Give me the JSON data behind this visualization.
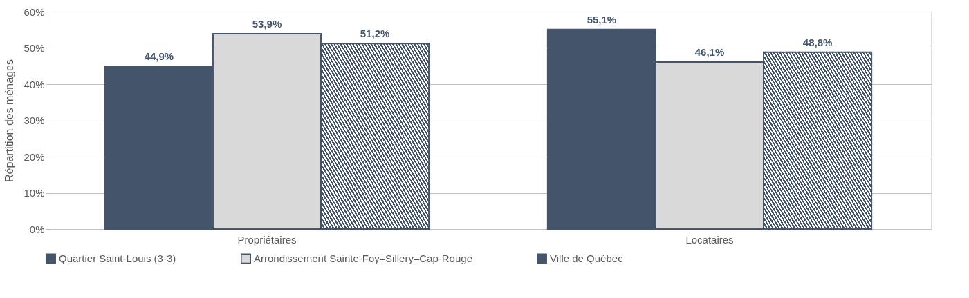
{
  "chart_data": {
    "type": "bar",
    "ylabel": "Répartition des ménages",
    "categories": [
      "Propriétaires",
      "Locataires"
    ],
    "series": [
      {
        "name": "Quartier Saint-Louis (3-3)",
        "color": "#44546a",
        "values": [
          44.9,
          55.1
        ],
        "value_labels": [
          "44,9%",
          "55,1%"
        ]
      },
      {
        "name": "Arrondissement Sainte-Foy–Sillery–Cap-Rouge",
        "color": "#d9d9d9",
        "values": [
          53.9,
          46.1
        ],
        "value_labels": [
          "53,9%",
          "46,1%"
        ]
      },
      {
        "name": "Ville de Québec",
        "color": "#44546a",
        "values": [
          51.2,
          48.8
        ],
        "value_labels": [
          "51,2%",
          "48,8%"
        ]
      }
    ],
    "ylim": [
      0,
      60
    ],
    "yticks": [
      {
        "value": 0,
        "label": "0%"
      },
      {
        "value": 10,
        "label": "10%"
      },
      {
        "value": 20,
        "label": "20%"
      },
      {
        "value": 30,
        "label": "30%"
      },
      {
        "value": 40,
        "label": "40%"
      },
      {
        "value": 50,
        "label": "50%"
      },
      {
        "value": 60,
        "label": "60%"
      }
    ],
    "grid": "y",
    "legend": "bottom"
  }
}
